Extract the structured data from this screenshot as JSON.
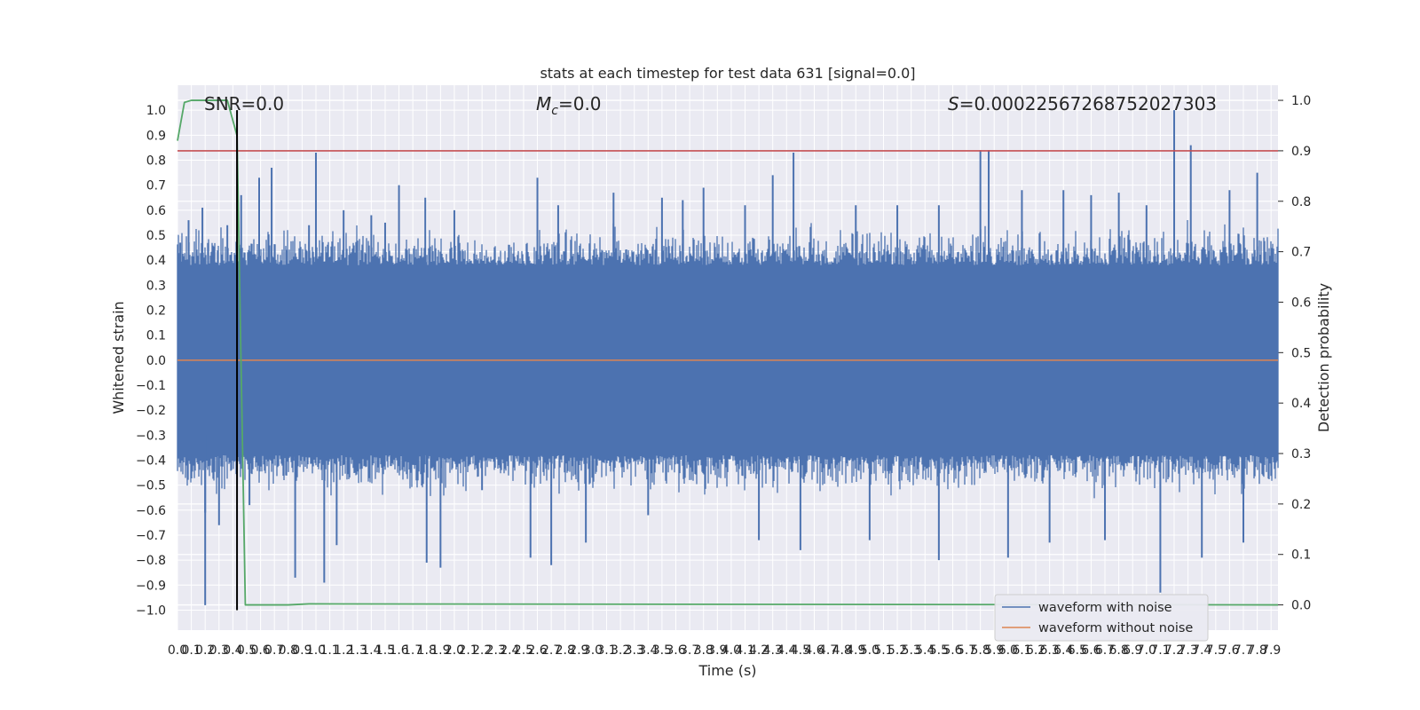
{
  "chart_data": {
    "type": "line",
    "title": "stats at each timestep for test data 631 [signal=0.0]",
    "xlabel": "Time (s)",
    "ylabel": "Whitened strain",
    "y2label": "Detection probability",
    "xlim": [
      0.0,
      7.95
    ],
    "ylim": [
      -1.08,
      1.1
    ],
    "y2lim": [
      -0.05,
      1.03
    ],
    "x_ticks": [
      "0.0",
      "0.1",
      "0.2",
      "0.3",
      "0.4",
      "0.5",
      "0.6",
      "0.7",
      "0.8",
      "0.9",
      "1.0",
      "1.1",
      "1.2",
      "1.3",
      "1.4",
      "1.5",
      "1.6",
      "1.7",
      "1.8",
      "1.9",
      "2.0",
      "2.1",
      "2.2",
      "2.3",
      "2.4",
      "2.5",
      "2.6",
      "2.7",
      "2.8",
      "2.9",
      "3.0",
      "3.1",
      "3.2",
      "3.3",
      "3.4",
      "3.5",
      "3.6",
      "3.7",
      "3.8",
      "3.9",
      "4.0",
      "4.1",
      "4.2",
      "4.3",
      "4.4",
      "4.5",
      "4.6",
      "4.7",
      "4.8",
      "4.9",
      "5.0",
      "5.1",
      "5.2",
      "5.3",
      "5.4",
      "5.5",
      "5.6",
      "5.7",
      "5.8",
      "5.9",
      "6.0",
      "6.1",
      "6.2",
      "6.3",
      "6.4",
      "6.5",
      "6.6",
      "6.7",
      "6.8",
      "6.9",
      "7.0",
      "7.1",
      "7.2",
      "7.3",
      "7.4",
      "7.5",
      "7.6",
      "7.7",
      "7.8",
      "7.9"
    ],
    "y_ticks": [
      "−1.0",
      "−0.9",
      "−0.8",
      "−0.7",
      "−0.6",
      "−0.5",
      "−0.4",
      "−0.3",
      "−0.2",
      "−0.1",
      "0.0",
      "0.1",
      "0.2",
      "0.3",
      "0.4",
      "0.5",
      "0.6",
      "0.7",
      "0.8",
      "0.9",
      "1.0"
    ],
    "y2_ticks": [
      "0.0",
      "0.1",
      "0.2",
      "0.3",
      "0.4",
      "0.5",
      "0.6",
      "0.7",
      "0.8",
      "0.9",
      "1.0"
    ],
    "annotations": {
      "snr": "SNR=0.0",
      "mc_symbol": "M",
      "mc_sub": "c",
      "mc_value": "=0.0",
      "s_symbol": "S",
      "s_value": "=0.00022567268752027303"
    },
    "threshold": {
      "value": 0.9,
      "axis": "detection probability",
      "color": "#c44e52"
    },
    "marker_line": {
      "x": 0.43,
      "y_from": -1.0,
      "y_to": 1.0,
      "color": "#000000"
    },
    "series": [
      {
        "name": "waveform with noise",
        "color": "#4c72b0",
        "kind": "noise-envelope",
        "band": 0.38,
        "peaks_up": [
          [
            0.02,
            0.47
          ],
          [
            0.08,
            0.56
          ],
          [
            0.18,
            0.61
          ],
          [
            0.36,
            0.54
          ],
          [
            0.46,
            0.66
          ],
          [
            0.59,
            0.73
          ],
          [
            0.68,
            0.77
          ],
          [
            0.95,
            0.54
          ],
          [
            1.0,
            0.83
          ],
          [
            1.2,
            0.6
          ],
          [
            1.4,
            0.58
          ],
          [
            1.5,
            0.55
          ],
          [
            1.6,
            0.7
          ],
          [
            1.79,
            0.65
          ],
          [
            2.0,
            0.6
          ],
          [
            2.6,
            0.73
          ],
          [
            2.75,
            0.62
          ],
          [
            3.15,
            0.67
          ],
          [
            3.5,
            0.65
          ],
          [
            3.65,
            0.64
          ],
          [
            3.8,
            0.69
          ],
          [
            4.1,
            0.62
          ],
          [
            4.3,
            0.74
          ],
          [
            4.45,
            0.83
          ],
          [
            4.9,
            0.62
          ],
          [
            5.2,
            0.62
          ],
          [
            5.5,
            0.62
          ],
          [
            5.8,
            0.84
          ],
          [
            5.86,
            0.84
          ],
          [
            6.1,
            0.68
          ],
          [
            6.4,
            0.68
          ],
          [
            6.6,
            0.66
          ],
          [
            6.8,
            0.67
          ],
          [
            7.0,
            0.62
          ],
          [
            7.2,
            1.0
          ],
          [
            7.32,
            0.86
          ],
          [
            7.6,
            0.68
          ],
          [
            7.8,
            0.75
          ]
        ],
        "peaks_down": [
          [
            0.2,
            -0.61
          ],
          [
            0.2,
            -0.98
          ],
          [
            0.3,
            -0.66
          ],
          [
            0.52,
            -0.58
          ],
          [
            0.85,
            -0.87
          ],
          [
            1.06,
            -0.89
          ],
          [
            1.15,
            -0.74
          ],
          [
            1.8,
            -0.81
          ],
          [
            1.9,
            -0.83
          ],
          [
            2.2,
            -0.52
          ],
          [
            2.55,
            -0.79
          ],
          [
            2.7,
            -0.82
          ],
          [
            2.95,
            -0.73
          ],
          [
            3.4,
            -0.62
          ],
          [
            4.2,
            -0.72
          ],
          [
            4.5,
            -0.76
          ],
          [
            5.0,
            -0.72
          ],
          [
            5.5,
            -0.8
          ],
          [
            6.0,
            -0.79
          ],
          [
            6.3,
            -0.73
          ],
          [
            6.7,
            -0.72
          ],
          [
            7.1,
            -0.93
          ],
          [
            7.4,
            -0.79
          ],
          [
            7.7,
            -0.73
          ]
        ]
      },
      {
        "name": "waveform without noise",
        "color": "#dd8452",
        "x": [
          0.0,
          7.95
        ],
        "values": [
          0.0,
          0.0
        ]
      },
      {
        "name": "detection probability",
        "axis": "y2",
        "color": "#55a868",
        "x": [
          0.0,
          0.05,
          0.1,
          0.36,
          0.43,
          0.49,
          0.8,
          0.95,
          7.95
        ],
        "values": [
          0.92,
          0.996,
          1.0,
          1.0,
          0.93,
          0.0,
          0.0,
          0.002,
          0.0
        ]
      }
    ],
    "legend": {
      "position": "lower-right",
      "entries": [
        "waveform with noise",
        "waveform without noise"
      ]
    },
    "grid": true,
    "colors": {
      "axes_bg": "#eaeaf2",
      "grid": "#ffffff"
    }
  }
}
